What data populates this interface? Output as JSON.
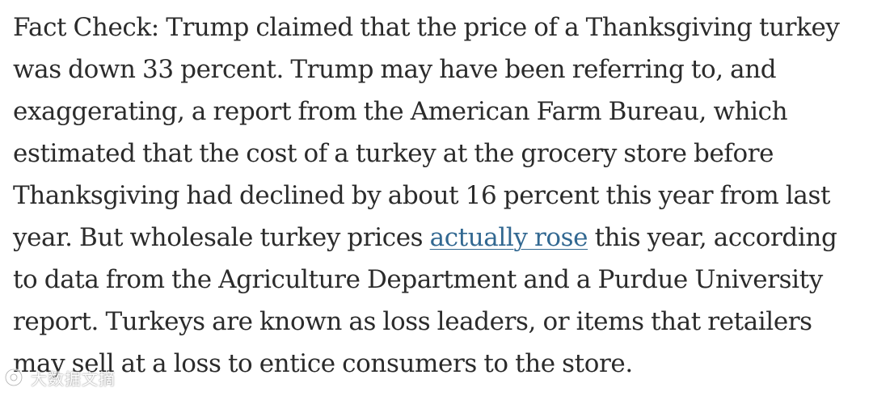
{
  "article": {
    "paragraph_before_link": "Fact Check: Trump claimed that the price of a Thanksgiving turkey was down 33 percent. Trump may have been referring to, and exaggerating, a report from the American Farm Bureau, which estimated that the cost of a turkey at the grocery store before Thanksgiving had declined by about 16 percent this year from last year. But wholesale turkey prices ",
    "link_text": "actually rose",
    "paragraph_after_link": " this year, according to data from the Agriculture Department and a Purdue University report. Turkeys are known as loss leaders, or items that retailers may sell at a loss to entice consumers to the store."
  },
  "watermark": {
    "text": "大数据文摘"
  },
  "colors": {
    "text": "#2b2b2b",
    "link": "#326891",
    "background": "#ffffff"
  },
  "icons": {
    "watermark_logo": "watermark-logo-icon"
  }
}
